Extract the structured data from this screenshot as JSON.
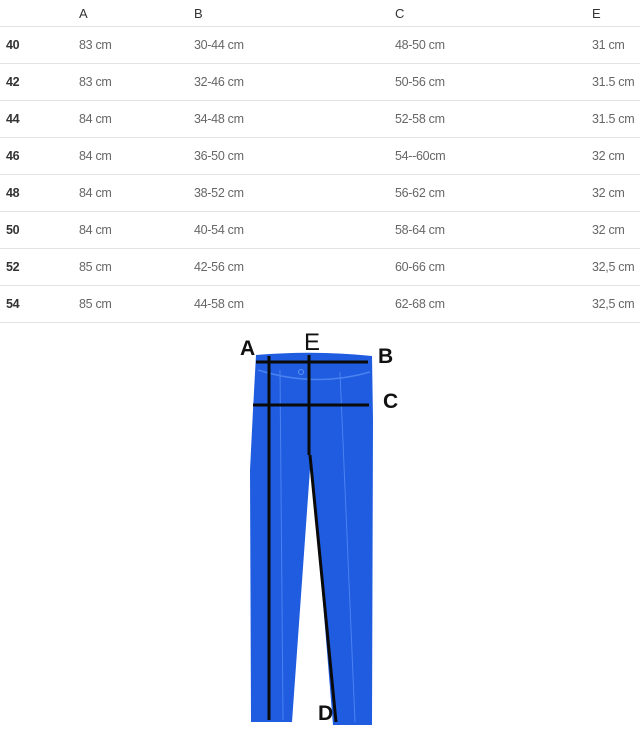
{
  "table": {
    "headers": [
      "",
      "A",
      "B",
      "C",
      "E"
    ],
    "rows": [
      [
        "40",
        "83 cm",
        "30-44 cm",
        "48-50  cm",
        "31 cm"
      ],
      [
        "42",
        "83 cm",
        "32-46 cm",
        "50-56  cm",
        "31.5 cm"
      ],
      [
        "44",
        "84 cm",
        "34-48 cm",
        "52-58  cm",
        "31.5 cm"
      ],
      [
        "46",
        "84 cm",
        "36-50 cm",
        "54--60cm",
        "32 cm"
      ],
      [
        "48",
        "84 cm",
        "38-52 cm",
        "56-62  cm",
        "32 cm"
      ],
      [
        "50",
        "84 cm",
        "40-54 cm",
        "58-64  cm",
        "32 cm"
      ],
      [
        "52",
        "85 cm",
        "42-56 cm",
        "60-66  cm",
        "32,5 cm"
      ],
      [
        "54",
        "85 cm",
        "44-58 cm",
        "62-68  cm",
        "32,5 cm"
      ]
    ]
  },
  "diagram": {
    "labels": {
      "a": "A",
      "b": "B",
      "c": "C",
      "d": "D",
      "e": "E"
    },
    "pants_color": "#1f5ce0"
  }
}
